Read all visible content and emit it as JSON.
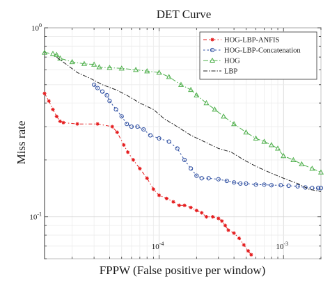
{
  "chart_data": {
    "type": "line",
    "title": "DET Curve",
    "xlabel": "FPPW (False positive per window)",
    "ylabel": "Miss rate",
    "x_scale": "log",
    "y_scale": "log",
    "xlim": [
      1.2e-05,
      0.002
    ],
    "ylim": [
      0.06,
      1.0
    ],
    "x_ticks": [
      {
        "value": 0.0001,
        "base": "10",
        "exp": "-4"
      },
      {
        "value": 0.001,
        "base": "10",
        "exp": "-3"
      }
    ],
    "y_ticks": [
      {
        "value": 1.0,
        "base": "10",
        "exp": "0"
      },
      {
        "value": 0.1,
        "base": "10",
        "exp": "-1"
      }
    ],
    "grid": true,
    "legend_position": "top-right",
    "series": [
      {
        "name": "HOG-LBP-ANFIS",
        "color": "#e41a1c",
        "dash": "5,3,1.5,3",
        "marker": "asterisk",
        "points": [
          [
            1.2e-05,
            0.45
          ],
          [
            1.3e-05,
            0.41
          ],
          [
            1.4e-05,
            0.37
          ],
          [
            1.5e-05,
            0.34
          ],
          [
            1.6e-05,
            0.32
          ],
          [
            1.7e-05,
            0.315
          ],
          [
            2.2e-05,
            0.31
          ],
          [
            3.2e-05,
            0.31
          ],
          [
            4.2e-05,
            0.3
          ],
          [
            4.6e-05,
            0.28
          ],
          [
            5.2e-05,
            0.24
          ],
          [
            5.6e-05,
            0.22
          ],
          [
            6.2e-05,
            0.2
          ],
          [
            7e-05,
            0.18
          ],
          [
            8e-05,
            0.16
          ],
          [
            9e-05,
            0.14
          ],
          [
            0.0001,
            0.13
          ],
          [
            0.000115,
            0.125
          ],
          [
            0.00013,
            0.12
          ],
          [
            0.000145,
            0.115
          ],
          [
            0.00016,
            0.115
          ],
          [
            0.00018,
            0.112
          ],
          [
            0.0002,
            0.108
          ],
          [
            0.00022,
            0.105
          ],
          [
            0.00024,
            0.1
          ],
          [
            0.00027,
            0.1
          ],
          [
            0.0003,
            0.098
          ],
          [
            0.00032,
            0.095
          ],
          [
            0.00034,
            0.09
          ],
          [
            0.00036,
            0.085
          ],
          [
            0.0004,
            0.082
          ],
          [
            0.00044,
            0.077
          ],
          [
            0.00048,
            0.071
          ],
          [
            0.00052,
            0.066
          ],
          [
            0.00055,
            0.063
          ]
        ]
      },
      {
        "name": "HOG-LBP-Concatenation",
        "color": "#2b4ca0",
        "dash": "2.5,3",
        "marker": "circle",
        "points": [
          [
            3e-05,
            0.5
          ],
          [
            3.2e-05,
            0.48
          ],
          [
            3.5e-05,
            0.46
          ],
          [
            3.8e-05,
            0.44
          ],
          [
            4e-05,
            0.41
          ],
          [
            4.5e-05,
            0.37
          ],
          [
            5e-05,
            0.34
          ],
          [
            5.5e-05,
            0.31
          ],
          [
            6e-05,
            0.3
          ],
          [
            6.7e-05,
            0.3
          ],
          [
            7.5e-05,
            0.29
          ],
          [
            8.5e-05,
            0.27
          ],
          [
            0.0001,
            0.26
          ],
          [
            0.00012,
            0.25
          ],
          [
            0.00014,
            0.23
          ],
          [
            0.00016,
            0.2
          ],
          [
            0.00018,
            0.18
          ],
          [
            0.0002,
            0.165
          ],
          [
            0.00022,
            0.16
          ],
          [
            0.00025,
            0.16
          ],
          [
            0.0003,
            0.158
          ],
          [
            0.00035,
            0.155
          ],
          [
            0.0004,
            0.152
          ],
          [
            0.00045,
            0.15
          ],
          [
            0.0005,
            0.15
          ],
          [
            0.0006,
            0.148
          ],
          [
            0.0007,
            0.148
          ],
          [
            0.0008,
            0.147
          ],
          [
            0.00095,
            0.147
          ],
          [
            0.0011,
            0.146
          ],
          [
            0.0013,
            0.145
          ],
          [
            0.0015,
            0.143
          ],
          [
            0.0017,
            0.142
          ],
          [
            0.0019,
            0.142
          ],
          [
            0.002,
            0.142
          ]
        ]
      },
      {
        "name": "HOG",
        "color": "#4daf4a",
        "dash": "7,2.5,1.5,2.5",
        "marker": "triangle",
        "points": [
          [
            1.2e-05,
            0.74
          ],
          [
            1.4e-05,
            0.73
          ],
          [
            1.5e-05,
            0.72
          ],
          [
            1.6e-05,
            0.69
          ],
          [
            2e-05,
            0.66
          ],
          [
            2.5e-05,
            0.645
          ],
          [
            3e-05,
            0.64
          ],
          [
            3.3e-05,
            0.62
          ],
          [
            4e-05,
            0.615
          ],
          [
            5e-05,
            0.61
          ],
          [
            6.5e-05,
            0.6
          ],
          [
            8e-05,
            0.59
          ],
          [
            0.0001,
            0.58
          ],
          [
            0.00012,
            0.55
          ],
          [
            0.00015,
            0.5
          ],
          [
            0.00018,
            0.47
          ],
          [
            0.0002,
            0.44
          ],
          [
            0.00024,
            0.4
          ],
          [
            0.00028,
            0.37
          ],
          [
            0.00033,
            0.34
          ],
          [
            0.0004,
            0.31
          ],
          [
            0.0005,
            0.28
          ],
          [
            0.0006,
            0.26
          ],
          [
            0.0007,
            0.25
          ],
          [
            0.0008,
            0.24
          ],
          [
            0.0009,
            0.23
          ],
          [
            0.001,
            0.21
          ],
          [
            0.0012,
            0.2
          ],
          [
            0.0014,
            0.19
          ],
          [
            0.0017,
            0.18
          ],
          [
            0.002,
            0.172
          ]
        ]
      },
      {
        "name": "LBP",
        "color": "#222222",
        "dash": "6,2,1.5,2",
        "marker": "none",
        "points": [
          [
            1.5e-05,
            0.7
          ],
          [
            1.8e-05,
            0.64
          ],
          [
            2.2e-05,
            0.58
          ],
          [
            2.8e-05,
            0.54
          ],
          [
            3.5e-05,
            0.5
          ],
          [
            4.5e-05,
            0.47
          ],
          [
            5.5e-05,
            0.44
          ],
          [
            7e-05,
            0.4
          ],
          [
            9e-05,
            0.37
          ],
          [
            0.00011,
            0.33
          ],
          [
            0.00014,
            0.3
          ],
          [
            0.00018,
            0.27
          ],
          [
            0.00023,
            0.25
          ],
          [
            0.0003,
            0.23
          ],
          [
            0.00038,
            0.22
          ],
          [
            0.00048,
            0.2
          ],
          [
            0.0006,
            0.185
          ],
          [
            0.0008,
            0.17
          ],
          [
            0.001,
            0.16
          ],
          [
            0.0013,
            0.15
          ],
          [
            0.0016,
            0.14
          ],
          [
            0.002,
            0.136
          ]
        ]
      }
    ]
  }
}
